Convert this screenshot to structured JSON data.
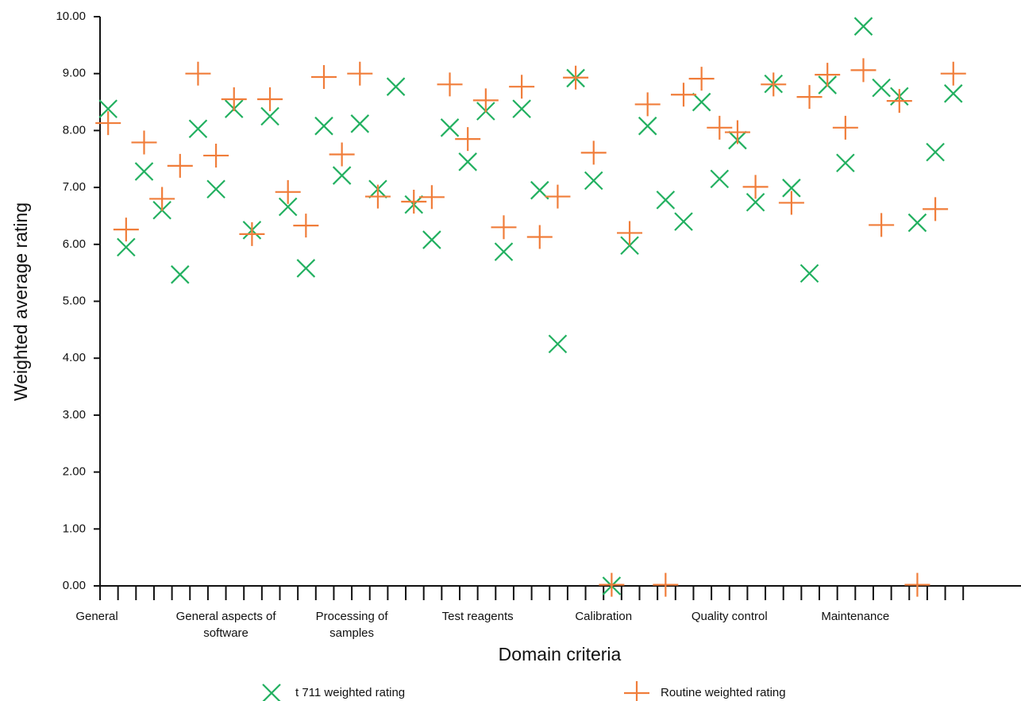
{
  "chart_data": {
    "type": "scatter",
    "x_label": "Domain criteria",
    "y_label": "Weighted average rating",
    "categories": [
      "General",
      null,
      null,
      null,
      null,
      null,
      null,
      "General aspects of software",
      null,
      null,
      null,
      null,
      null,
      null,
      "Processing of samples",
      null,
      null,
      null,
      null,
      null,
      null,
      "Test reagents",
      null,
      null,
      null,
      null,
      null,
      null,
      "Calibration",
      null,
      null,
      null,
      null,
      null,
      null,
      "Quality control",
      null,
      null,
      null,
      null,
      null,
      null,
      "Maintenance",
      null,
      null,
      null,
      null,
      null
    ],
    "series": [
      {
        "name": "t 711 weighted rating",
        "color": "#22b060",
        "marker": "x",
        "values": [
          8.38,
          5.95,
          7.28,
          6.6,
          5.47,
          8.03,
          6.97,
          8.38,
          6.25,
          8.25,
          6.66,
          5.58,
          8.08,
          7.21,
          8.12,
          6.97,
          8.77,
          6.7,
          6.08,
          8.05,
          7.45,
          8.34,
          5.87,
          8.38,
          6.95,
          4.25,
          8.92,
          7.12,
          0,
          5.98,
          8.08,
          6.78,
          6.4,
          8.5,
          7.15,
          7.83,
          6.74,
          8.82,
          6.99,
          5.49,
          8.8,
          7.43,
          9.83,
          8.75,
          8.6,
          6.38,
          7.62,
          8.65
        ]
      },
      {
        "name": "Routine weighted rating",
        "color": "#f07d3a",
        "marker": "+",
        "values": [
          8.13,
          6.26,
          7.79,
          6.8,
          7.38,
          9.0,
          7.56,
          8.55,
          6.18,
          8.55,
          6.92,
          6.33,
          8.94,
          7.58,
          9.0,
          6.84,
          null,
          6.75,
          6.83,
          8.81,
          7.85,
          8.53,
          6.3,
          8.77,
          6.13,
          6.84,
          8.93,
          7.61,
          0.02,
          6.2,
          8.46,
          0.02,
          8.63,
          8.91,
          8.05,
          7.97,
          7.01,
          8.81,
          6.73,
          8.59,
          8.98,
          8.05,
          9.06,
          6.34,
          8.52,
          0.02,
          6.62,
          9.0
        ]
      }
    ],
    "ylim": [
      0,
      10
    ],
    "yticks": [
      {
        "value": 0,
        "label": "0.00"
      },
      {
        "value": 1,
        "label": "1.00"
      },
      {
        "value": 2,
        "label": "2.00"
      },
      {
        "value": 3,
        "label": "3.00"
      },
      {
        "value": 4,
        "label": "4.00"
      },
      {
        "value": 5,
        "label": "5.00"
      },
      {
        "value": 6,
        "label": "6.00"
      },
      {
        "value": 7,
        "label": "7.00"
      },
      {
        "value": 8,
        "label": "8.00"
      },
      {
        "value": 9,
        "label": "9.00"
      },
      {
        "value": 10,
        "label": "10.00"
      }
    ]
  }
}
